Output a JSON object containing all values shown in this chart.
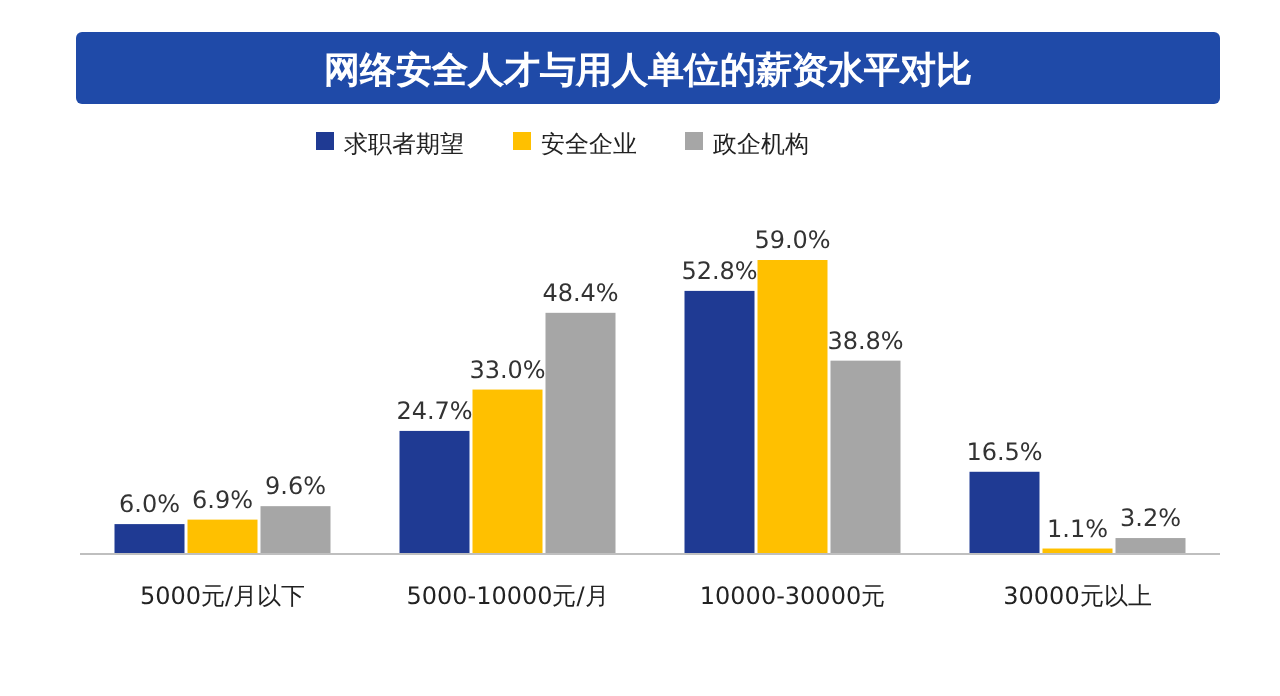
{
  "chart_data": {
    "type": "bar",
    "title": "网络安全人才与用人单位的薪资水平对比",
    "categories": [
      "5000元/月以下",
      "5000-10000元/月",
      "10000-30000元",
      "30000元以上"
    ],
    "series": [
      {
        "name": "求职者期望",
        "color": "#1f3a93",
        "values": [
          6.0,
          24.7,
          52.8,
          16.5
        ],
        "value_labels": [
          "6.0%",
          "24.7%",
          "52.8%",
          "16.5%"
        ]
      },
      {
        "name": "安全企业",
        "color": "#ffc000",
        "values": [
          6.9,
          33.0,
          59.0,
          1.1
        ],
        "value_labels": [
          "6.9%",
          "33.0%",
          "59.0%",
          "1.1%"
        ]
      },
      {
        "name": "政企机构",
        "color": "#a6a6a6",
        "values": [
          9.6,
          48.4,
          38.8,
          3.2
        ],
        "value_labels": [
          "9.6%",
          "48.4%",
          "38.8%",
          "3.2%"
        ]
      }
    ],
    "legend": "top"
  }
}
